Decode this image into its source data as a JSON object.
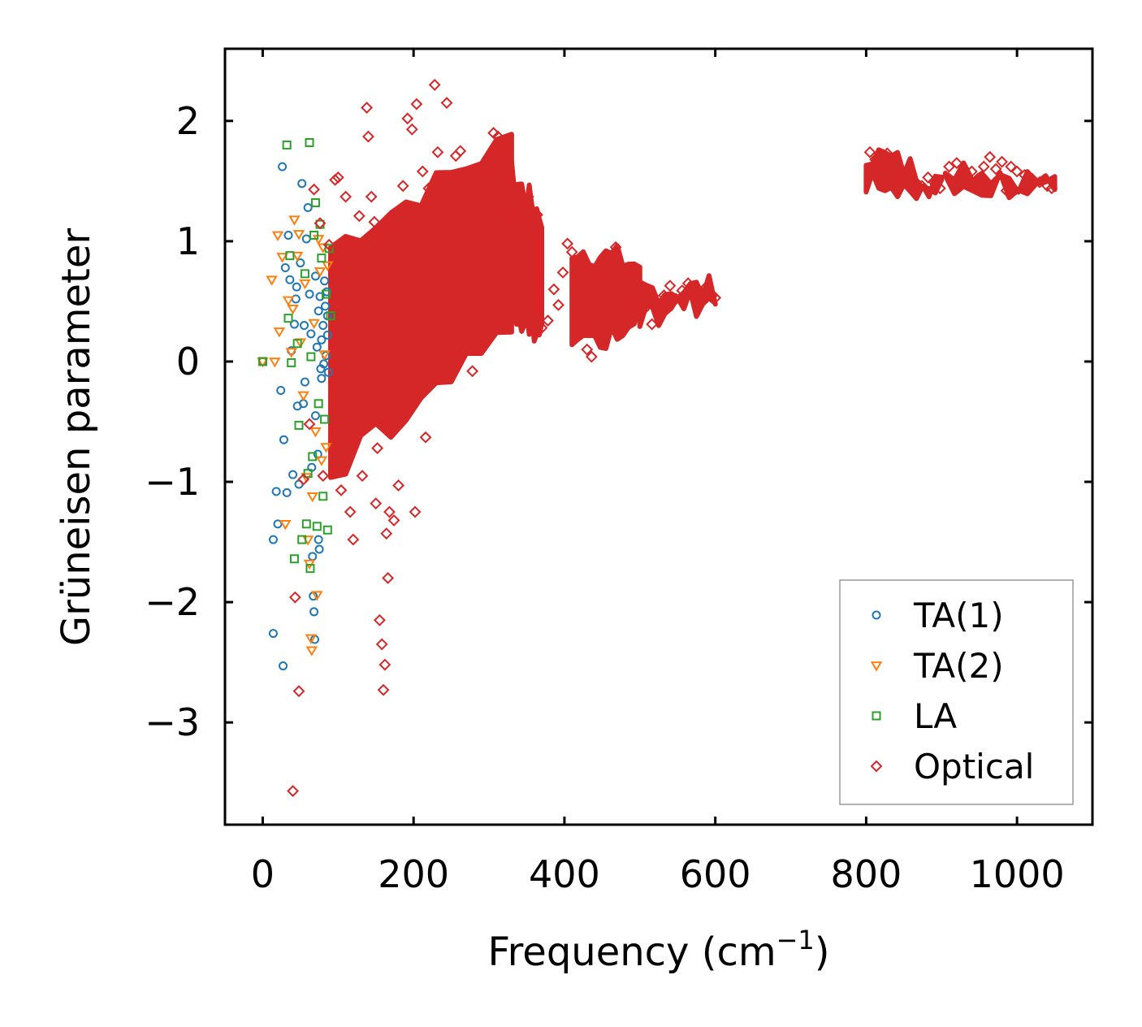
{
  "chart_data": {
    "type": "scatter",
    "title": "",
    "xlabel": "Frequency (cm",
    "xlabel_superscript": "−1",
    "xlabel_suffix": ")",
    "ylabel": "Grüneisen parameter",
    "xlim": [
      -50,
      1100
    ],
    "ylim": [
      -3.85,
      2.6
    ],
    "xticks": [
      0,
      200,
      400,
      600,
      800,
      1000
    ],
    "xtick_labels": [
      "0",
      "200",
      "400",
      "600",
      "800",
      "1000"
    ],
    "yticks": [
      -3,
      -2,
      -1,
      0,
      1,
      2
    ],
    "ytick_labels": [
      "−3",
      "−2",
      "−1",
      "0",
      "1",
      "2"
    ],
    "grid": false,
    "legend_position": "bottom-right",
    "series": [
      {
        "name": "TA(1)",
        "marker": "circle",
        "color": "#1f77b4",
        "points": [
          [
            0,
            0
          ],
          [
            14,
            -2.26
          ],
          [
            14,
            -1.48
          ],
          [
            18,
            -1.08
          ],
          [
            20,
            -1.35
          ],
          [
            24,
            -0.24
          ],
          [
            26,
            1.62
          ],
          [
            27,
            -2.53
          ],
          [
            28,
            -0.65
          ],
          [
            30,
            0.78
          ],
          [
            32,
            -1.09
          ],
          [
            34,
            1.05
          ],
          [
            36,
            0.68
          ],
          [
            38,
            0.09
          ],
          [
            40,
            -0.94
          ],
          [
            42,
            0.31
          ],
          [
            44,
            0.52
          ],
          [
            45,
            0.62
          ],
          [
            46,
            -0.37
          ],
          [
            48,
            -1.02
          ],
          [
            50,
            0.82
          ],
          [
            52,
            1.48
          ],
          [
            54,
            -0.35
          ],
          [
            55,
            0.3
          ],
          [
            56,
            -0.17
          ],
          [
            58,
            1.02
          ],
          [
            60,
            1.28
          ],
          [
            62,
            0.56
          ],
          [
            64,
            0.23
          ],
          [
            65,
            -0.88
          ],
          [
            66,
            -1.62
          ],
          [
            67,
            -1.95
          ],
          [
            68,
            -2.08
          ],
          [
            69,
            -2.31
          ],
          [
            70,
            -0.45
          ],
          [
            70,
            0.71
          ],
          [
            72,
            0.12
          ],
          [
            73,
            -0.77
          ],
          [
            74,
            -1.48
          ],
          [
            74,
            0.42
          ],
          [
            75,
            -1.56
          ],
          [
            76,
            0.54
          ],
          [
            77,
            -0.06
          ],
          [
            78,
            0.18
          ],
          [
            78,
            -0.14
          ],
          [
            80,
            0.3
          ],
          [
            81,
            -0.02
          ],
          [
            82,
            0.67
          ],
          [
            83,
            0.46
          ],
          [
            84,
            0.05
          ],
          [
            85,
            0.58
          ],
          [
            86,
            0.38
          ],
          [
            86,
            0.22
          ],
          [
            87,
            -0.09
          ]
        ]
      },
      {
        "name": "TA(2)",
        "marker": "triangle-down",
        "color": "#ff7f0e",
        "points": [
          [
            0,
            0
          ],
          [
            12,
            0.68
          ],
          [
            16,
            0.0
          ],
          [
            20,
            1.05
          ],
          [
            22,
            0.25
          ],
          [
            26,
            0.87
          ],
          [
            30,
            -1.35
          ],
          [
            34,
            0.51
          ],
          [
            38,
            0.08
          ],
          [
            40,
            0.44
          ],
          [
            42,
            1.18
          ],
          [
            46,
            0.88
          ],
          [
            48,
            1.06
          ],
          [
            50,
            0.16
          ],
          [
            54,
            -0.28
          ],
          [
            56,
            0.65
          ],
          [
            58,
            -0.96
          ],
          [
            60,
            -1.48
          ],
          [
            62,
            -1.68
          ],
          [
            64,
            -2.3
          ],
          [
            65,
            -2.4
          ],
          [
            66,
            -1.12
          ],
          [
            68,
            0.32
          ],
          [
            70,
            -0.58
          ],
          [
            72,
            -1.94
          ],
          [
            74,
            1.02
          ],
          [
            76,
            0.75
          ],
          [
            78,
            -0.82
          ],
          [
            80,
            0.95
          ],
          [
            82,
            0.06
          ],
          [
            84,
            -0.71
          ],
          [
            86,
            0.8
          ]
        ]
      },
      {
        "name": "LA",
        "marker": "square",
        "color": "#2ca02c",
        "points": [
          [
            0,
            0
          ],
          [
            32,
            1.8
          ],
          [
            34,
            0.36
          ],
          [
            36,
            0.88
          ],
          [
            38,
            -0.01
          ],
          [
            42,
            -1.64
          ],
          [
            46,
            0.15
          ],
          [
            48,
            -0.53
          ],
          [
            52,
            -1.48
          ],
          [
            56,
            0.73
          ],
          [
            58,
            -1.35
          ],
          [
            60,
            -0.93
          ],
          [
            62,
            1.82
          ],
          [
            63,
            -1.72
          ],
          [
            64,
            0.04
          ],
          [
            66,
            -0.79
          ],
          [
            68,
            1.05
          ],
          [
            70,
            1.32
          ],
          [
            72,
            -1.37
          ],
          [
            74,
            -0.35
          ],
          [
            76,
            1.14
          ],
          [
            78,
            0.86
          ],
          [
            80,
            -1.12
          ],
          [
            82,
            -0.48
          ],
          [
            84,
            0.56
          ],
          [
            86,
            -1.4
          ],
          [
            88,
            0.94
          ],
          [
            90,
            0.38
          ]
        ]
      },
      {
        "name": "Optical",
        "marker": "diamond",
        "color": "#d62728",
        "points": [
          [
            40,
            -3.57
          ],
          [
            43,
            -1.96
          ],
          [
            48,
            -2.74
          ],
          [
            54,
            -0.98
          ],
          [
            62,
            -0.52
          ],
          [
            68,
            1.43
          ],
          [
            76,
            1.15
          ],
          [
            80,
            -0.95
          ],
          [
            88,
            0.97
          ],
          [
            96,
            1.51
          ],
          [
            100,
            1.53
          ],
          [
            104,
            -1.07
          ],
          [
            110,
            1.37
          ],
          [
            116,
            -1.25
          ],
          [
            120,
            -1.48
          ],
          [
            128,
            1.21
          ],
          [
            132,
            -0.95
          ],
          [
            138,
            2.11
          ],
          [
            140,
            1.87
          ],
          [
            144,
            1.37
          ],
          [
            148,
            1.16
          ],
          [
            150,
            -1.18
          ],
          [
            152,
            -0.72
          ],
          [
            155,
            -2.15
          ],
          [
            158,
            -2.35
          ],
          [
            160,
            -2.73
          ],
          [
            162,
            -2.52
          ],
          [
            164,
            -1.43
          ],
          [
            166,
            -1.8
          ],
          [
            168,
            -1.25
          ],
          [
            174,
            -1.32
          ],
          [
            180,
            -1.03
          ],
          [
            186,
            1.46
          ],
          [
            192,
            2.02
          ],
          [
            198,
            1.93
          ],
          [
            202,
            -1.25
          ],
          [
            204,
            2.14
          ],
          [
            208,
            1.12
          ],
          [
            212,
            1.58
          ],
          [
            216,
            -0.63
          ],
          [
            220,
            1.44
          ],
          [
            224,
            1.26
          ],
          [
            228,
            2.3
          ],
          [
            232,
            1.74
          ],
          [
            236,
            0.21
          ],
          [
            240,
            1.48
          ],
          [
            244,
            2.15
          ],
          [
            250,
            0.93
          ],
          [
            256,
            1.71
          ],
          [
            262,
            1.75
          ],
          [
            268,
            0.81
          ],
          [
            272,
            0.25
          ],
          [
            278,
            -0.08
          ],
          [
            286,
            1.45
          ],
          [
            292,
            1.23
          ],
          [
            300,
            1.57
          ],
          [
            306,
            1.9
          ],
          [
            312,
            1.87
          ],
          [
            318,
            1.18
          ],
          [
            324,
            0.77
          ],
          [
            330,
            0.62
          ],
          [
            338,
            1.25
          ],
          [
            346,
            1.18
          ],
          [
            352,
            1.37
          ],
          [
            358,
            0.42
          ],
          [
            364,
            1.22
          ],
          [
            370,
            0.28
          ],
          [
            378,
            0.34
          ],
          [
            386,
            0.6
          ],
          [
            392,
            0.47
          ],
          [
            398,
            0.74
          ],
          [
            404,
            0.98
          ],
          [
            410,
            0.91
          ],
          [
            418,
            0.55
          ],
          [
            424,
            0.28
          ],
          [
            430,
            0.1
          ],
          [
            436,
            0.04
          ],
          [
            442,
            0.5
          ],
          [
            448,
            0.79
          ],
          [
            454,
            0.54
          ],
          [
            460,
            0.72
          ],
          [
            468,
            0.95
          ],
          [
            472,
            0.81
          ],
          [
            478,
            0.42
          ],
          [
            486,
            0.62
          ],
          [
            494,
            0.77
          ],
          [
            500,
            0.58
          ],
          [
            508,
            0.45
          ],
          [
            516,
            0.31
          ],
          [
            524,
            0.46
          ],
          [
            532,
            0.55
          ],
          [
            540,
            0.63
          ],
          [
            548,
            0.52
          ],
          [
            556,
            0.59
          ],
          [
            564,
            0.65
          ],
          [
            572,
            0.6
          ],
          [
            580,
            0.56
          ],
          [
            588,
            0.62
          ],
          [
            596,
            0.55
          ],
          [
            600,
            0.53
          ],
          [
            805,
            1.74
          ],
          [
            812,
            1.68
          ],
          [
            820,
            1.64
          ],
          [
            828,
            1.73
          ],
          [
            836,
            1.6
          ],
          [
            842,
            1.55
          ],
          [
            850,
            1.51
          ],
          [
            858,
            1.58
          ],
          [
            866,
            1.49
          ],
          [
            874,
            1.46
          ],
          [
            882,
            1.53
          ],
          [
            890,
            1.49
          ],
          [
            898,
            1.44
          ],
          [
            910,
            1.62
          ],
          [
            920,
            1.65
          ],
          [
            930,
            1.6
          ],
          [
            940,
            1.58
          ],
          [
            948,
            1.52
          ],
          [
            956,
            1.62
          ],
          [
            964,
            1.7
          ],
          [
            972,
            1.6
          ],
          [
            980,
            1.66
          ],
          [
            986,
            1.42
          ],
          [
            992,
            1.62
          ],
          [
            1000,
            1.58
          ],
          [
            1010,
            1.55
          ],
          [
            1020,
            1.52
          ],
          [
            1030,
            1.49
          ],
          [
            1040,
            1.46
          ],
          [
            1046,
            1.44
          ]
        ]
      }
    ],
    "optical_dense_regions": [
      {
        "x": [
          90,
          330
        ],
        "ylow": [
          -0.95,
          0.35
        ],
        "yhigh": [
          0.95,
          1.85
        ]
      },
      {
        "x": [
          330,
          370
        ],
        "ylow": [
          0.35,
          0.25
        ],
        "yhigh": [
          1.55,
          1.2
        ]
      },
      {
        "x": [
          410,
          500
        ],
        "ylow": [
          0.05,
          0.35
        ],
        "yhigh": [
          0.95,
          0.8
        ]
      },
      {
        "x": [
          500,
          600
        ],
        "ylow": [
          0.35,
          0.52
        ],
        "yhigh": [
          0.6,
          0.6
        ]
      },
      {
        "x": [
          800,
          900
        ],
        "ylow": [
          1.5,
          1.45
        ],
        "yhigh": [
          1.75,
          1.5
        ]
      },
      {
        "x": [
          905,
          1050
        ],
        "ylow": [
          1.52,
          1.43
        ],
        "yhigh": [
          1.65,
          1.47
        ]
      }
    ],
    "legend": {
      "entries": [
        "TA(1)",
        "TA(2)",
        "LA",
        "Optical"
      ]
    }
  }
}
